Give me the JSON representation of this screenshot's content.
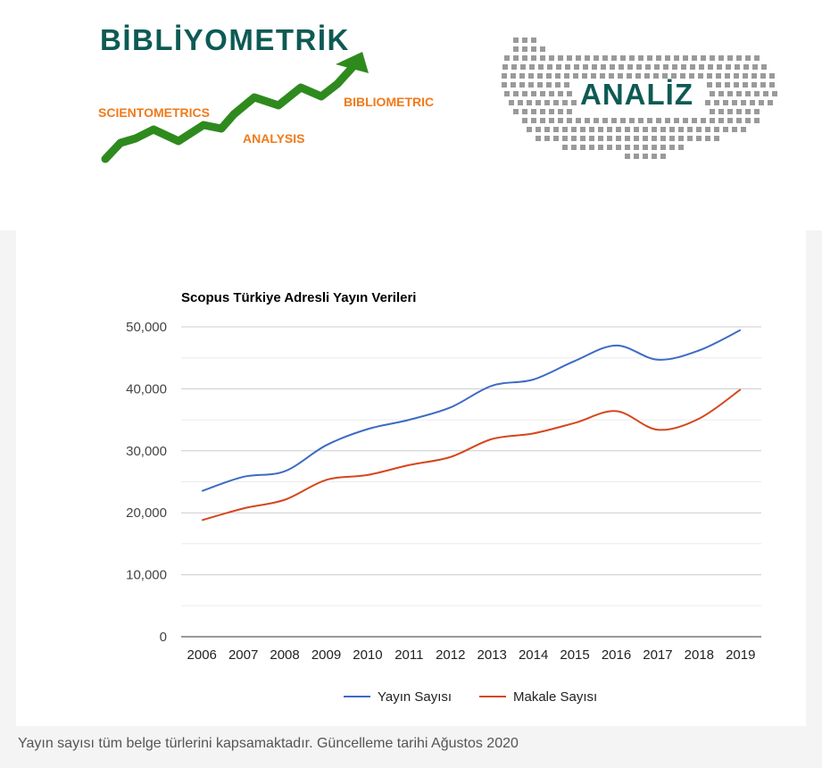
{
  "header": {
    "logo_title": "BİBLİYOMETRİK",
    "logo_scientometrics": "SCIENTOMETRICS",
    "logo_analysis": "ANALYSIS",
    "logo_bibliometric": "BIBLIOMETRIC",
    "map_label": "ANALİZ",
    "colors": {
      "title": "#0e5a54",
      "arrow": "#2f8a1e",
      "orange": "#f07a1a",
      "dots": "#9a9a9a"
    }
  },
  "chart_data": {
    "type": "line",
    "title": "Scopus Türkiye Adresli Yayın Verileri",
    "x": [
      "2006",
      "2007",
      "2008",
      "2009",
      "2010",
      "2011",
      "2012",
      "2013",
      "2014",
      "2015",
      "2016",
      "2017",
      "2018",
      "2019"
    ],
    "y_ticks": [
      "0",
      "10,000",
      "20,000",
      "30,000",
      "40,000",
      "50,000"
    ],
    "ylim": [
      0,
      50000
    ],
    "grid": true,
    "legend_position": "bottom",
    "series": [
      {
        "name": "Yayın Sayısı",
        "color": "#3d6bc4",
        "values": [
          23500,
          25800,
          26700,
          30900,
          33500,
          35000,
          37000,
          40500,
          41500,
          44500,
          47000,
          44700,
          46200,
          49500
        ]
      },
      {
        "name": "Makale Sayısı",
        "color": "#d6461c",
        "values": [
          18800,
          20700,
          22100,
          25300,
          26100,
          27700,
          29000,
          31900,
          32800,
          34500,
          36400,
          33400,
          35200,
          39900
        ]
      }
    ]
  },
  "caption": "Yayın sayısı tüm belge türlerini kapsamaktadır. Güncelleme tarihi Ağustos 2020"
}
